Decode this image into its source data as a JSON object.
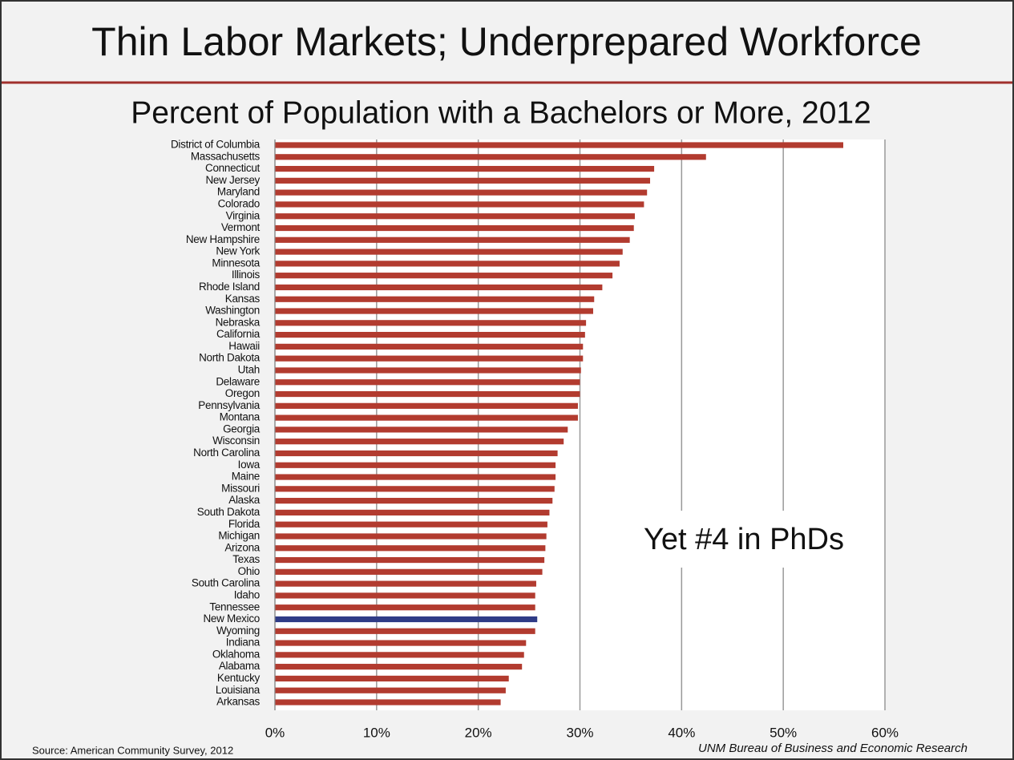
{
  "chart_data": {
    "type": "bar",
    "orientation": "horizontal",
    "title": "Thin Labor Markets; Underprepared Workforce",
    "subtitle": "Percent of Population with a Bachelors or More, 2012",
    "categories": [
      "District of Columbia",
      "Massachusetts",
      "Connecticut",
      "New Jersey",
      "Maryland",
      "Colorado",
      "Virginia",
      "Vermont",
      "New Hampshire",
      "New York",
      "Minnesota",
      "Illinois",
      "Rhode Island",
      "Kansas",
      "Washington",
      "Nebraska",
      "California",
      "Hawaii",
      "North Dakota",
      "Utah",
      "Delaware",
      "Oregon",
      "Pennsylvania",
      "Montana",
      "Georgia",
      "Wisconsin",
      "North Carolina",
      "Iowa",
      "Maine",
      "Missouri",
      "Alaska",
      "South Dakota",
      "Florida",
      "Michigan",
      "Arizona",
      "Texas",
      "Ohio",
      "South Carolina",
      "Idaho",
      "Tennessee",
      "New Mexico",
      "Wyoming",
      "Indiana",
      "Oklahoma",
      "Alabama",
      "Kentucky",
      "Louisiana",
      "Arkansas"
    ],
    "values": [
      55.9,
      42.4,
      37.3,
      36.9,
      36.6,
      36.3,
      35.4,
      35.3,
      34.9,
      34.2,
      33.9,
      33.2,
      32.2,
      31.4,
      31.3,
      30.6,
      30.5,
      30.3,
      30.3,
      30.1,
      30.0,
      30.0,
      29.8,
      29.8,
      28.8,
      28.4,
      27.8,
      27.6,
      27.6,
      27.5,
      27.3,
      27.0,
      26.8,
      26.7,
      26.6,
      26.5,
      26.3,
      25.7,
      25.6,
      25.6,
      25.8,
      25.6,
      24.7,
      24.5,
      24.3,
      23.0,
      22.7,
      22.2
    ],
    "colors": [
      "#b23b2f",
      "#b23b2f",
      "#b23b2f",
      "#b23b2f",
      "#b23b2f",
      "#b23b2f",
      "#b23b2f",
      "#b23b2f",
      "#b23b2f",
      "#b23b2f",
      "#b23b2f",
      "#b23b2f",
      "#b23b2f",
      "#b23b2f",
      "#b23b2f",
      "#b23b2f",
      "#b23b2f",
      "#b23b2f",
      "#b23b2f",
      "#b23b2f",
      "#b23b2f",
      "#b23b2f",
      "#b23b2f",
      "#b23b2f",
      "#b23b2f",
      "#b23b2f",
      "#b23b2f",
      "#b23b2f",
      "#b23b2f",
      "#b23b2f",
      "#b23b2f",
      "#b23b2f",
      "#b23b2f",
      "#b23b2f",
      "#b23b2f",
      "#b23b2f",
      "#b23b2f",
      "#b23b2f",
      "#b23b2f",
      "#b23b2f",
      "#2f3b86",
      "#b23b2f",
      "#b23b2f",
      "#b23b2f",
      "#b23b2f",
      "#b23b2f",
      "#b23b2f",
      "#b23b2f"
    ],
    "xlim": [
      0,
      60
    ],
    "xticks": [
      {
        "value": 0,
        "label": "0%"
      },
      {
        "value": 10,
        "label": "10%"
      },
      {
        "value": 20,
        "label": "20%"
      },
      {
        "value": 30,
        "label": "30%"
      },
      {
        "value": 40,
        "label": "40%"
      },
      {
        "value": 50,
        "label": "50%"
      },
      {
        "value": 60,
        "label": "60%"
      }
    ],
    "grid": true,
    "annotation": "Yet #4 in PhDs",
    "source": "Source: American Community Survey, 2012",
    "credit": "UNM Bureau of Business and Economic Research"
  }
}
